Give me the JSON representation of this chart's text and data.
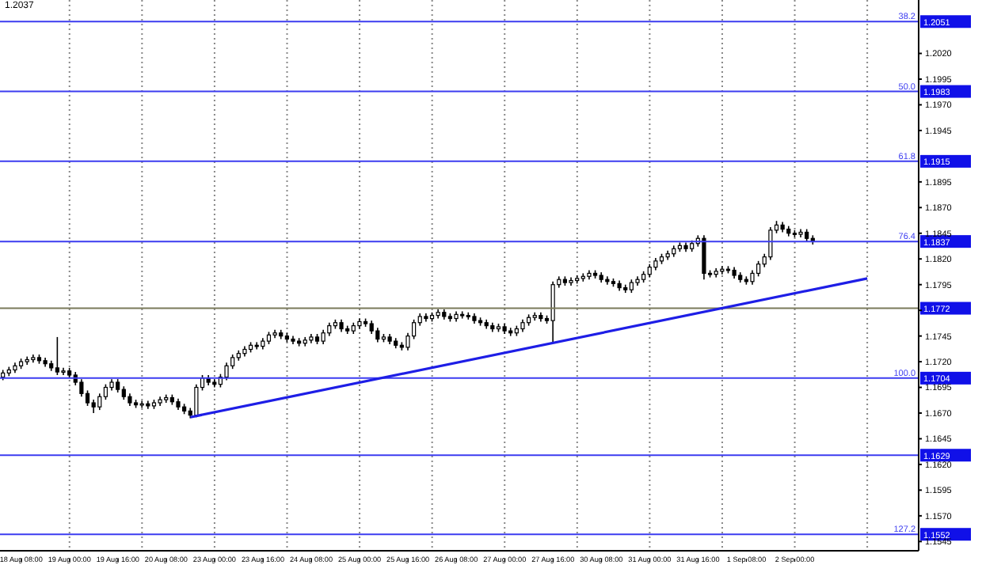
{
  "chart_data": {
    "type": "candlestick",
    "annotations": [
      "1.2037",
      {
        "text": "38.2",
        "y": 1.2051
      },
      {
        "text": "50.0",
        "y": 1.1983
      },
      {
        "text": "61.8",
        "y": 1.1915
      },
      {
        "text": "76.4",
        "y": 1.1837
      },
      {
        "text": "100.0",
        "y": 1.1704
      },
      {
        "text": "127.2",
        "y": 1.1552
      }
    ],
    "categories": [
      null,
      null,
      null,
      "18 Aug 08:00",
      null,
      null,
      null,
      null,
      null,
      null,
      null,
      "19 Aug 00:00",
      null,
      null,
      null,
      null,
      null,
      null,
      null,
      "19 Aug 16:00",
      null,
      null,
      null,
      null,
      null,
      null,
      null,
      "20 Aug 08:00",
      null,
      null,
      null,
      null,
      null,
      null,
      null,
      "23 Aug 00:00",
      null,
      null,
      null,
      null,
      null,
      null,
      null,
      "23 Aug 16:00",
      null,
      null,
      null,
      null,
      null,
      null,
      null,
      "24 Aug 08:00",
      null,
      null,
      null,
      null,
      null,
      null,
      null,
      "25 Aug 00:00",
      null,
      null,
      null,
      null,
      null,
      null,
      null,
      "25 Aug 16:00",
      null,
      null,
      null,
      null,
      null,
      null,
      null,
      "26 Aug 08:00",
      null,
      null,
      null,
      null,
      null,
      null,
      null,
      "27 Aug 00:00",
      null,
      null,
      null,
      null,
      null,
      null,
      null,
      "27 Aug 16:00",
      null,
      null,
      null,
      null,
      null,
      null,
      null,
      "30 Aug 08:00",
      null,
      null,
      null,
      null,
      null,
      null,
      null,
      "31 Aug 00:00",
      null,
      null,
      null,
      null,
      null,
      null,
      null,
      "31 Aug 16:00",
      null,
      null,
      null,
      null,
      null,
      null,
      null,
      "1 Sep 08:00",
      null,
      null,
      null,
      null,
      null,
      null,
      null,
      "2 Sep 00:00",
      null,
      null,
      null,
      null,
      null,
      null,
      null,
      null,
      null,
      null,
      null,
      null,
      null,
      null,
      null,
      null,
      null,
      null,
      null,
      null
    ],
    "ohlc": [
      [
        1.1705,
        1.1712,
        1.1702,
        1.1709
      ],
      [
        1.1709,
        1.1715,
        1.1706,
        1.1712
      ],
      [
        1.1712,
        1.1719,
        1.1709,
        1.1716
      ],
      [
        1.1716,
        1.1723,
        1.1713,
        1.172
      ],
      [
        1.172,
        1.1725,
        1.1717,
        1.1722
      ],
      [
        1.1722,
        1.1727,
        1.1719,
        1.1724
      ],
      [
        1.1724,
        1.1727,
        1.1718,
        1.1721
      ],
      [
        1.1721,
        1.1724,
        1.1715,
        1.1718
      ],
      [
        1.1718,
        1.1721,
        1.1711,
        1.1714
      ],
      [
        1.1714,
        1.1744,
        1.1707,
        1.171
      ],
      [
        1.171,
        1.1714,
        1.1707,
        1.1711
      ],
      [
        1.1711,
        1.1714,
        1.1704,
        1.1707
      ],
      [
        1.1707,
        1.171,
        1.1697,
        1.17
      ],
      [
        1.17,
        1.1703,
        1.1686,
        1.1689
      ],
      [
        1.1689,
        1.1692,
        1.1677,
        1.168
      ],
      [
        1.168,
        1.1683,
        1.167,
        1.1676
      ],
      [
        1.1676,
        1.1689,
        1.1673,
        1.1686
      ],
      [
        1.1686,
        1.1698,
        1.1683,
        1.1695
      ],
      [
        1.1695,
        1.1703,
        1.1692,
        1.17
      ],
      [
        1.17,
        1.1703,
        1.169,
        1.1693
      ],
      [
        1.1693,
        1.1696,
        1.1683,
        1.1686
      ],
      [
        1.1686,
        1.1689,
        1.1677,
        1.168
      ],
      [
        1.168,
        1.1683,
        1.1675,
        1.1678
      ],
      [
        1.1678,
        1.1682,
        1.1675,
        1.1679
      ],
      [
        1.1679,
        1.1682,
        1.1674,
        1.1677
      ],
      [
        1.1677,
        1.1683,
        1.1674,
        1.168
      ],
      [
        1.168,
        1.1686,
        1.1677,
        1.1683
      ],
      [
        1.1683,
        1.1688,
        1.168,
        1.1685
      ],
      [
        1.1685,
        1.1688,
        1.1678,
        1.1681
      ],
      [
        1.1681,
        1.1684,
        1.1673,
        1.1676
      ],
      [
        1.1676,
        1.1679,
        1.1669,
        1.1672
      ],
      [
        1.1672,
        1.1675,
        1.1665,
        1.1668
      ],
      [
        1.1668,
        1.1698,
        1.1666,
        1.1695
      ],
      [
        1.1695,
        1.1707,
        1.1692,
        1.1704
      ],
      [
        1.1704,
        1.1707,
        1.1697,
        1.17
      ],
      [
        1.17,
        1.1703,
        1.1695,
        1.1698
      ],
      [
        1.1698,
        1.1708,
        1.1695,
        1.1705
      ],
      [
        1.1705,
        1.1719,
        1.1702,
        1.1716
      ],
      [
        1.1716,
        1.1727,
        1.1713,
        1.1724
      ],
      [
        1.1724,
        1.1731,
        1.1721,
        1.1728
      ],
      [
        1.1728,
        1.1735,
        1.1725,
        1.1732
      ],
      [
        1.1732,
        1.1739,
        1.1729,
        1.1736
      ],
      [
        1.1736,
        1.1739,
        1.1732,
        1.1735
      ],
      [
        1.1735,
        1.1743,
        1.1732,
        1.174
      ],
      [
        1.174,
        1.1749,
        1.1737,
        1.1746
      ],
      [
        1.1746,
        1.1751,
        1.1743,
        1.1748
      ],
      [
        1.1748,
        1.1751,
        1.1742,
        1.1745
      ],
      [
        1.1745,
        1.1748,
        1.1739,
        1.1742
      ],
      [
        1.1742,
        1.1745,
        1.1737,
        1.174
      ],
      [
        1.174,
        1.1743,
        1.1735,
        1.1738
      ],
      [
        1.1738,
        1.1744,
        1.1735,
        1.1741
      ],
      [
        1.1741,
        1.1747,
        1.1738,
        1.1744
      ],
      [
        1.1744,
        1.1747,
        1.1737,
        1.174
      ],
      [
        1.174,
        1.1751,
        1.1737,
        1.1748
      ],
      [
        1.1748,
        1.1758,
        1.1745,
        1.1755
      ],
      [
        1.1755,
        1.1761,
        1.1752,
        1.1758
      ],
      [
        1.1758,
        1.1761,
        1.1749,
        1.1752
      ],
      [
        1.1752,
        1.1755,
        1.1747,
        1.175
      ],
      [
        1.175,
        1.1758,
        1.1747,
        1.1755
      ],
      [
        1.1755,
        1.1762,
        1.1752,
        1.1759
      ],
      [
        1.1759,
        1.1762,
        1.1754,
        1.1757
      ],
      [
        1.1757,
        1.176,
        1.1747,
        1.175
      ],
      [
        1.175,
        1.1753,
        1.1739,
        1.1742
      ],
      [
        1.1742,
        1.1747,
        1.1739,
        1.1744
      ],
      [
        1.1744,
        1.1747,
        1.1737,
        1.174
      ],
      [
        1.174,
        1.1743,
        1.1733,
        1.1736
      ],
      [
        1.1736,
        1.1739,
        1.1731,
        1.1734
      ],
      [
        1.1734,
        1.1748,
        1.1731,
        1.1745
      ],
      [
        1.1745,
        1.1761,
        1.1742,
        1.1758
      ],
      [
        1.1758,
        1.1767,
        1.1755,
        1.1764
      ],
      [
        1.1764,
        1.1767,
        1.1759,
        1.1762
      ],
      [
        1.1762,
        1.1768,
        1.1759,
        1.1765
      ],
      [
        1.1765,
        1.1771,
        1.1762,
        1.1768
      ],
      [
        1.1768,
        1.1771,
        1.1761,
        1.1764
      ],
      [
        1.1764,
        1.1767,
        1.1759,
        1.1762
      ],
      [
        1.1762,
        1.1769,
        1.1759,
        1.1766
      ],
      [
        1.1766,
        1.1769,
        1.1762,
        1.1765
      ],
      [
        1.1765,
        1.1768,
        1.1761,
        1.1764
      ],
      [
        1.1764,
        1.1767,
        1.1757,
        1.176
      ],
      [
        1.176,
        1.1763,
        1.1755,
        1.1758
      ],
      [
        1.1758,
        1.1761,
        1.1752,
        1.1755
      ],
      [
        1.1755,
        1.1758,
        1.1749,
        1.1752
      ],
      [
        1.1752,
        1.1757,
        1.1749,
        1.1754
      ],
      [
        1.1754,
        1.1757,
        1.1747,
        1.175
      ],
      [
        1.175,
        1.1753,
        1.1745,
        1.1748
      ],
      [
        1.1748,
        1.1755,
        1.1745,
        1.1752
      ],
      [
        1.1752,
        1.1761,
        1.1749,
        1.1758
      ],
      [
        1.1758,
        1.1766,
        1.1755,
        1.1763
      ],
      [
        1.1763,
        1.1768,
        1.176,
        1.1765
      ],
      [
        1.1765,
        1.1768,
        1.1759,
        1.1762
      ],
      [
        1.1762,
        1.1765,
        1.1757,
        1.176
      ],
      [
        1.176,
        1.1798,
        1.1738,
        1.1795
      ],
      [
        1.1795,
        1.1803,
        1.1792,
        1.18
      ],
      [
        1.18,
        1.1803,
        1.1794,
        1.1797
      ],
      [
        1.1797,
        1.1802,
        1.1794,
        1.1799
      ],
      [
        1.1799,
        1.1804,
        1.1796,
        1.1801
      ],
      [
        1.1801,
        1.1806,
        1.1798,
        1.1803
      ],
      [
        1.1803,
        1.1809,
        1.18,
        1.1806
      ],
      [
        1.1806,
        1.1809,
        1.1801,
        1.1804
      ],
      [
        1.1804,
        1.1807,
        1.1797,
        1.18
      ],
      [
        1.18,
        1.1803,
        1.1795,
        1.1798
      ],
      [
        1.1798,
        1.1801,
        1.1793,
        1.1796
      ],
      [
        1.1796,
        1.1799,
        1.1789,
        1.1792
      ],
      [
        1.1792,
        1.1795,
        1.1787,
        1.179
      ],
      [
        1.179,
        1.18,
        1.1787,
        1.1797
      ],
      [
        1.1797,
        1.1803,
        1.1794,
        1.18
      ],
      [
        1.18,
        1.1808,
        1.1797,
        1.1805
      ],
      [
        1.1805,
        1.1815,
        1.1802,
        1.1812
      ],
      [
        1.1812,
        1.1821,
        1.1809,
        1.1818
      ],
      [
        1.1818,
        1.1825,
        1.1815,
        1.1822
      ],
      [
        1.1822,
        1.1828,
        1.1819,
        1.1825
      ],
      [
        1.1825,
        1.1833,
        1.1822,
        1.183
      ],
      [
        1.183,
        1.1836,
        1.1827,
        1.1833
      ],
      [
        1.1833,
        1.1836,
        1.1827,
        1.183
      ],
      [
        1.183,
        1.1838,
        1.1827,
        1.1835
      ],
      [
        1.1835,
        1.1843,
        1.1832,
        1.184
      ],
      [
        1.184,
        1.1843,
        1.18,
        1.1806
      ],
      [
        1.1806,
        1.1809,
        1.1802,
        1.1805
      ],
      [
        1.1805,
        1.1811,
        1.1802,
        1.1808
      ],
      [
        1.1808,
        1.1813,
        1.1805,
        1.181
      ],
      [
        1.181,
        1.1813,
        1.1806,
        1.1809
      ],
      [
        1.1809,
        1.1812,
        1.1801,
        1.1804
      ],
      [
        1.1804,
        1.1807,
        1.1797,
        1.18
      ],
      [
        1.18,
        1.1803,
        1.1795,
        1.1798
      ],
      [
        1.1798,
        1.1809,
        1.1795,
        1.1806
      ],
      [
        1.1806,
        1.1818,
        1.1803,
        1.1815
      ],
      [
        1.1815,
        1.1825,
        1.1812,
        1.1822
      ],
      [
        1.1822,
        1.1851,
        1.1819,
        1.1848
      ],
      [
        1.1848,
        1.1857,
        1.1845,
        1.1853
      ],
      [
        1.1853,
        1.1856,
        1.1846,
        1.1849
      ],
      [
        1.1849,
        1.1852,
        1.1842,
        1.1845
      ],
      [
        1.1845,
        1.1848,
        1.1841,
        1.1844
      ],
      [
        1.1844,
        1.1849,
        1.1841,
        1.1846
      ],
      [
        1.1846,
        1.1849,
        1.1837,
        1.184
      ],
      [
        1.184,
        1.1843,
        1.1834,
        1.1837
      ],
      null,
      null,
      null,
      null,
      null,
      null,
      null,
      null,
      null,
      null,
      null,
      null,
      null,
      null,
      null,
      null,
      null
    ],
    "series": [
      {
        "type": "line",
        "color": "#1e1ee6",
        "values": [
          null,
          null,
          null,
          null,
          null,
          null,
          null,
          null,
          null,
          null,
          null,
          null,
          null,
          null,
          null,
          null,
          null,
          null,
          null,
          null,
          null,
          null,
          null,
          null,
          null,
          null,
          null,
          null,
          null,
          null,
          null,
          1.1666,
          null,
          null,
          null,
          null,
          null,
          null,
          null,
          null,
          null,
          null,
          null,
          null,
          null,
          null,
          null,
          null,
          null,
          null,
          null,
          null,
          null,
          null,
          null,
          null,
          null,
          null,
          null,
          null,
          null,
          null,
          null,
          null,
          null,
          null,
          null,
          null,
          null,
          null,
          null,
          null,
          null,
          null,
          null,
          null,
          null,
          null,
          null,
          null,
          null,
          null,
          null,
          null,
          null,
          null,
          null,
          null,
          null,
          null,
          null,
          null,
          null,
          null,
          null,
          null,
          null,
          null,
          null,
          null,
          null,
          null,
          null,
          null,
          null,
          null,
          null,
          null,
          null,
          null,
          null,
          null,
          null,
          null,
          null,
          null,
          null,
          null,
          null,
          null,
          null,
          null,
          null,
          null,
          null,
          null,
          null,
          null,
          null,
          null,
          null,
          null,
          null,
          null,
          null,
          null,
          null,
          null,
          null,
          null,
          null,
          null,
          null,
          1.1801,
          null,
          null,
          null,
          null,
          null,
          null,
          null,
          null
        ]
      }
    ],
    "ylim": [
      1.1536,
      1.2072
    ],
    "yticks": [
      {
        "value": 1.202,
        "label": "1.2020"
      },
      {
        "value": 1.1995,
        "label": "1.1995"
      },
      {
        "value": 1.197,
        "label": "1.1970"
      },
      {
        "value": 1.1945,
        "label": "1.1945"
      },
      {
        "value": 1.1895,
        "label": "1.1895"
      },
      {
        "value": 1.187,
        "label": "1.1870"
      },
      {
        "value": 1.1845,
        "label": "1.1845"
      },
      {
        "value": 1.182,
        "label": "1.1820"
      },
      {
        "value": 1.1795,
        "label": "1.1795"
      },
      {
        "value": 1.177,
        "label": null
      },
      {
        "value": 1.1745,
        "label": "1.1745"
      },
      {
        "value": 1.172,
        "label": "1.1720"
      },
      {
        "value": 1.1695,
        "label": "1.1695"
      },
      {
        "value": 1.167,
        "label": "1.1670"
      },
      {
        "value": 1.1645,
        "label": "1.1645"
      },
      {
        "value": 1.162,
        "label": "1.1620"
      },
      {
        "value": 1.1595,
        "label": "1.1595"
      },
      {
        "value": 1.157,
        "label": "1.1570"
      },
      {
        "value": 1.1545,
        "label": "1.1545"
      }
    ],
    "ref_lines": [
      {
        "axis": "y",
        "value": 1.2051,
        "label": "1.2051",
        "color": "#3c3cf0"
      },
      {
        "axis": "y",
        "value": 1.1983,
        "label": "1.1983",
        "color": "#3c3cf0"
      },
      {
        "axis": "y",
        "value": 1.1915,
        "label": "1.1915",
        "color": "#3c3cf0"
      },
      {
        "axis": "y",
        "value": 1.1837,
        "label": "1.1837",
        "color": "#3c3cf0"
      },
      {
        "axis": "y",
        "value": 1.1772,
        "label": "1.1772",
        "color": "#7a7a5a"
      },
      {
        "axis": "y",
        "value": 1.1704,
        "label": "1.1704",
        "color": "#3c3cf0"
      },
      {
        "axis": "y",
        "value": 1.1629,
        "label": "1.1629",
        "color": "#3c3cf0"
      },
      {
        "axis": "y",
        "value": 1.1552,
        "label": "1.1552",
        "color": "#3c3cf0"
      }
    ],
    "grid": "x",
    "legend": false
  }
}
